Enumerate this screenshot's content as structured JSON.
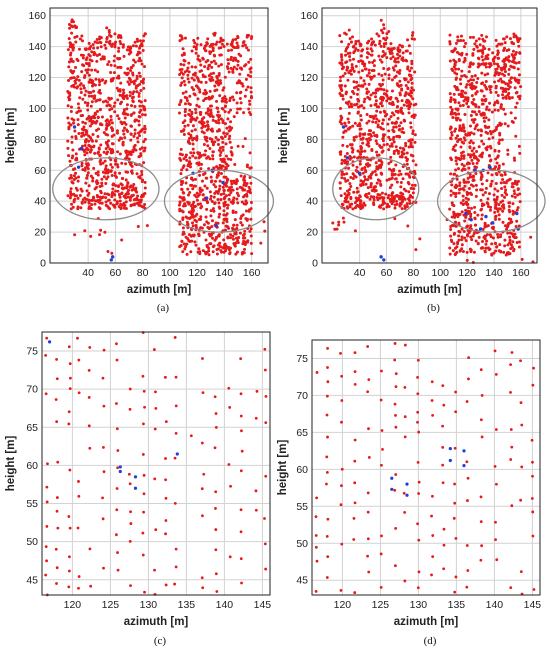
{
  "chart_data": [
    {
      "caption": "(a)",
      "type": "scatter",
      "xlabel": "azimuth [m]",
      "ylabel": "height [m]",
      "xlim": [
        12,
        172
      ],
      "ylim": [
        0,
        165
      ],
      "xticks": [
        40,
        60,
        80,
        100,
        120,
        140,
        160
      ],
      "yticks": [
        0,
        20,
        40,
        60,
        80,
        100,
        120,
        140,
        160
      ],
      "grid": true,
      "clusters": [
        {
          "x": [
            25,
            82
          ],
          "y": [
            35,
            158
          ],
          "n": 900
        },
        {
          "x": [
            107,
            160
          ],
          "y": [
            5,
            150
          ],
          "n": 1000
        }
      ],
      "series": [
        {
          "color": "#e41a1c",
          "points_sample": [
            [
              30,
              100
            ],
            [
              45,
              120
            ],
            [
              60,
              90
            ],
            [
              75,
              110
            ],
            [
              115,
              60
            ],
            [
              130,
              100
            ],
            [
              145,
              140
            ],
            [
              155,
              80
            ]
          ]
        },
        {
          "color": "#1f3fd6",
          "points": [
            [
              30,
              88
            ],
            [
              33,
              62
            ],
            [
              35,
              74
            ],
            [
              57,
              2
            ],
            [
              58,
              4
            ],
            [
              117,
              58
            ],
            [
              127,
              42
            ],
            [
              131,
              60
            ],
            [
              134,
              24
            ],
            [
              139,
              52
            ]
          ]
        }
      ],
      "annotations": [
        {
          "type": "ellipse",
          "cx": 53,
          "cy": 48,
          "rx": 39,
          "ry": 20
        },
        {
          "type": "ellipse",
          "cx": 136,
          "cy": 40,
          "rx": 40,
          "ry": 20
        }
      ]
    },
    {
      "caption": "(b)",
      "type": "scatter",
      "xlabel": "azimuth [m]",
      "ylabel": "height [m]",
      "xlim": [
        12,
        172
      ],
      "ylim": [
        0,
        165
      ],
      "xticks": [
        40,
        60,
        80,
        100,
        120,
        140,
        160
      ],
      "yticks": [
        0,
        20,
        40,
        60,
        80,
        100,
        120,
        140,
        160
      ],
      "grid": true,
      "clusters": [
        {
          "x": [
            25,
            82
          ],
          "y": [
            35,
            158
          ],
          "n": 900
        },
        {
          "x": [
            107,
            160
          ],
          "y": [
            5,
            150
          ],
          "n": 1000
        }
      ],
      "series": [
        {
          "color": "#e41a1c",
          "points_sample": [
            [
              30,
              100
            ],
            [
              45,
              120
            ],
            [
              60,
              90
            ],
            [
              75,
              110
            ],
            [
              115,
              60
            ],
            [
              130,
              100
            ],
            [
              145,
              140
            ],
            [
              155,
              80
            ]
          ]
        },
        {
          "color": "#1f3fd6",
          "points": [
            [
              28,
              88
            ],
            [
              31,
              68
            ],
            [
              40,
              58
            ],
            [
              56,
              4
            ],
            [
              58,
              2
            ],
            [
              119,
              32
            ],
            [
              123,
              28
            ],
            [
              126,
              60
            ],
            [
              130,
              22
            ],
            [
              132,
              60
            ],
            [
              134,
              30
            ],
            [
              137,
              62
            ],
            [
              139,
              26
            ],
            [
              157,
              32
            ],
            [
              158,
              22
            ]
          ]
        }
      ],
      "annotations": [
        {
          "type": "ellipse",
          "cx": 52,
          "cy": 48,
          "rx": 32,
          "ry": 20
        },
        {
          "type": "ellipse",
          "cx": 138,
          "cy": 40,
          "rx": 40,
          "ry": 20
        }
      ]
    },
    {
      "caption": "(c)",
      "type": "scatter",
      "xlabel": "azimuth [m]",
      "ylabel": "height [m]",
      "xlim": [
        116,
        146
      ],
      "ylim": [
        43,
        77.5
      ],
      "xticks": [
        120,
        125,
        130,
        135,
        140,
        145
      ],
      "yticks": [
        45,
        50,
        55,
        60,
        65,
        70,
        75
      ],
      "grid": true,
      "series": [
        {
          "color": "#e41a1c",
          "points_sample": [
            [
              117,
              76.5
            ],
            [
              118,
              73
            ],
            [
              120,
              68
            ],
            [
              124,
              62
            ],
            [
              130,
              55
            ],
            [
              135,
              71
            ],
            [
              140,
              60
            ],
            [
              145,
              48
            ]
          ]
        },
        {
          "color": "#1f3fd6",
          "points": [
            [
              117,
              76.2
            ],
            [
              126.3,
              59.8
            ],
            [
              126.3,
              59.2
            ],
            [
              128.3,
              57
            ],
            [
              128.3,
              58.5
            ],
            [
              133.8,
              61.5
            ]
          ]
        }
      ]
    },
    {
      "caption": "(d)",
      "type": "scatter",
      "xlabel": "azimuth [m]",
      "ylabel": "height [m]",
      "xlim": [
        116,
        146
      ],
      "ylim": [
        43,
        77.5
      ],
      "xticks": [
        120,
        125,
        130,
        135,
        140,
        145
      ],
      "yticks": [
        45,
        50,
        55,
        60,
        65,
        70,
        75
      ],
      "grid": true,
      "series": [
        {
          "color": "#e41a1c",
          "points_sample": [
            [
              117,
              76.5
            ],
            [
              118,
              73
            ],
            [
              120,
              68
            ],
            [
              124,
              62
            ],
            [
              130,
              55
            ],
            [
              135,
              71
            ],
            [
              140,
              60
            ],
            [
              145,
              48
            ]
          ]
        },
        {
          "color": "#1f3fd6",
          "points": [
            [
              126.5,
              58.8
            ],
            [
              126.5,
              57.3
            ],
            [
              128.5,
              58
            ],
            [
              128.5,
              56.5
            ],
            [
              134.2,
              61.2
            ],
            [
              134.2,
              62.8
            ],
            [
              136,
              60.5
            ],
            [
              136,
              62.5
            ]
          ]
        }
      ]
    }
  ]
}
